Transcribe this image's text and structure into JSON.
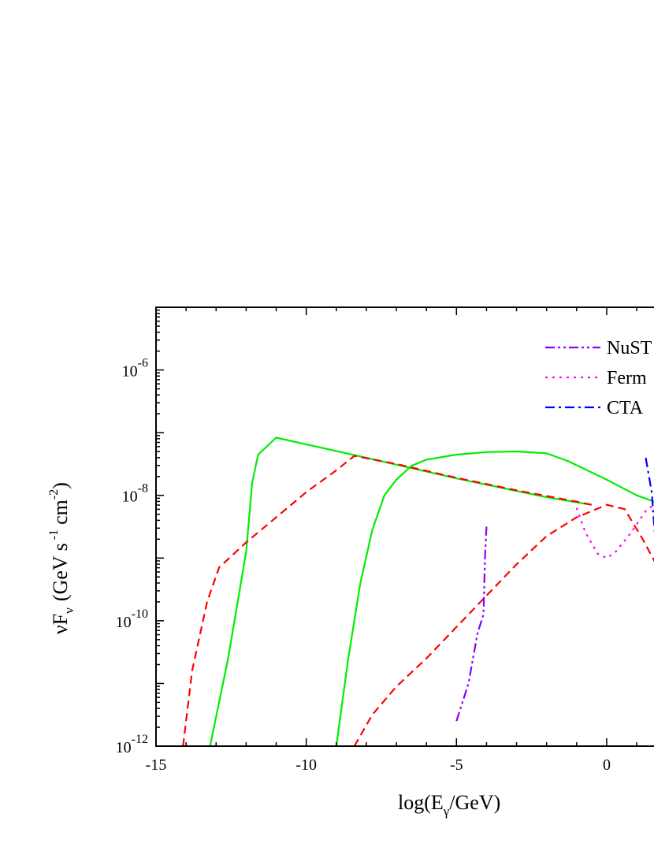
{
  "chart_data": {
    "type": "line",
    "xlabel_main": "log(E",
    "xlabel_sub": "γ",
    "xlabel_end": "/GeV)",
    "ylabel_nu": "νF",
    "ylabel_nu_sub": "ν",
    "ylabel_units_pre": "(GeV s",
    "ylabel_units_exp1": "-1",
    "ylabel_units_mid": "cm",
    "ylabel_units_exp2": "-2",
    "ylabel_units_post": ")",
    "xlim": [
      -15,
      2
    ],
    "ylim_log10": [
      -12,
      -5
    ],
    "y_scale": "log",
    "x_ticks": [
      {
        "value": -15,
        "label": "-15"
      },
      {
        "value": -10,
        "label": "-10"
      },
      {
        "value": -5,
        "label": "-5"
      },
      {
        "value": 0,
        "label": "0"
      }
    ],
    "y_ticks": [
      {
        "exp": -12,
        "base": "10",
        "sup": "-12"
      },
      {
        "exp": -10,
        "base": "10",
        "sup": "-10"
      },
      {
        "exp": -8,
        "base": "10",
        "sup": "-8"
      },
      {
        "exp": -6,
        "base": "10",
        "sup": "-6"
      }
    ],
    "legend": {
      "placement": "top-right",
      "entries": [
        {
          "label": "NuST",
          "color": "#8800ff",
          "dash": "dash-dot-dot"
        },
        {
          "label": "Ferm",
          "color": "#ff00ff",
          "dash": "dotted"
        },
        {
          "label": "CTA",
          "color": "#0000ff",
          "dash": "dash-dot"
        }
      ]
    },
    "series": [
      {
        "color": "#00ee00",
        "dash": "solid",
        "points": [
          [
            -13.2,
            -12
          ],
          [
            -12.6,
            -10.6
          ],
          [
            -12.0,
            -8.9
          ],
          [
            -11.8,
            -7.8
          ],
          [
            -11.6,
            -7.35
          ],
          [
            -11.0,
            -7.08
          ],
          [
            -8.0,
            -7.4
          ],
          [
            -5.0,
            -7.73
          ],
          [
            -2.0,
            -8.03
          ],
          [
            -0.5,
            -8.15
          ]
        ]
      },
      {
        "color": "#ff0000",
        "dash": "dashed",
        "points": [
          [
            -14.1,
            -12
          ],
          [
            -13.8,
            -10.8
          ],
          [
            -13.3,
            -9.7
          ],
          [
            -12.9,
            -9.15
          ],
          [
            -12.0,
            -8.75
          ],
          [
            -11.0,
            -8.35
          ],
          [
            -10.0,
            -7.95
          ],
          [
            -9.0,
            -7.6
          ],
          [
            -8.4,
            -7.37
          ],
          [
            -7.0,
            -7.5
          ],
          [
            -5.0,
            -7.72
          ],
          [
            -3.0,
            -7.92
          ],
          [
            -1.0,
            -8.1
          ],
          [
            -0.5,
            -8.15
          ]
        ]
      },
      {
        "color": "#00ee00",
        "dash": "solid",
        "points": [
          [
            -9.0,
            -12
          ],
          [
            -8.6,
            -10.6
          ],
          [
            -8.2,
            -9.4
          ],
          [
            -7.8,
            -8.55
          ],
          [
            -7.4,
            -8.0
          ],
          [
            -7.0,
            -7.75
          ],
          [
            -6.5,
            -7.53
          ],
          [
            -6.0,
            -7.43
          ],
          [
            -5.0,
            -7.35
          ],
          [
            -4.0,
            -7.31
          ],
          [
            -3.0,
            -7.3
          ],
          [
            -2.0,
            -7.33
          ],
          [
            -1.3,
            -7.45
          ],
          [
            0.0,
            -7.75
          ],
          [
            1.0,
            -8.0
          ],
          [
            1.7,
            -8.12
          ]
        ]
      },
      {
        "color": "#ff0000",
        "dash": "dashed",
        "points": [
          [
            -8.4,
            -12
          ],
          [
            -7.8,
            -11.5
          ],
          [
            -7.0,
            -11.05
          ],
          [
            -6.0,
            -10.6
          ],
          [
            -5.0,
            -10.1
          ],
          [
            -4.0,
            -9.6
          ],
          [
            -3.0,
            -9.1
          ],
          [
            -2.0,
            -8.65
          ],
          [
            -1.0,
            -8.35
          ],
          [
            0.0,
            -8.15
          ],
          [
            0.6,
            -8.22
          ],
          [
            1.2,
            -8.7
          ],
          [
            1.7,
            -9.15
          ]
        ]
      },
      {
        "color": "#8800ff",
        "dash": "dash-dot-dot",
        "points": [
          [
            -5.0,
            -11.6
          ],
          [
            -4.6,
            -11.0
          ],
          [
            -4.3,
            -10.2
          ],
          [
            -4.1,
            -9.9
          ],
          [
            -4.05,
            -9.0
          ],
          [
            -4.0,
            -8.5
          ]
        ]
      },
      {
        "color": "#ff00ff",
        "dash": "dotted",
        "points": [
          [
            -1.0,
            -8.2
          ],
          [
            -0.7,
            -8.6
          ],
          [
            -0.3,
            -8.93
          ],
          [
            0.0,
            -9.0
          ],
          [
            0.3,
            -8.9
          ],
          [
            0.8,
            -8.6
          ],
          [
            1.3,
            -8.25
          ],
          [
            1.7,
            -8.1
          ]
        ]
      },
      {
        "color": "#0000ff",
        "dash": "dash-dot",
        "points": [
          [
            1.3,
            -7.4
          ],
          [
            1.5,
            -7.95
          ],
          [
            1.6,
            -8.6
          ],
          [
            1.7,
            -9.0
          ]
        ]
      }
    ]
  }
}
